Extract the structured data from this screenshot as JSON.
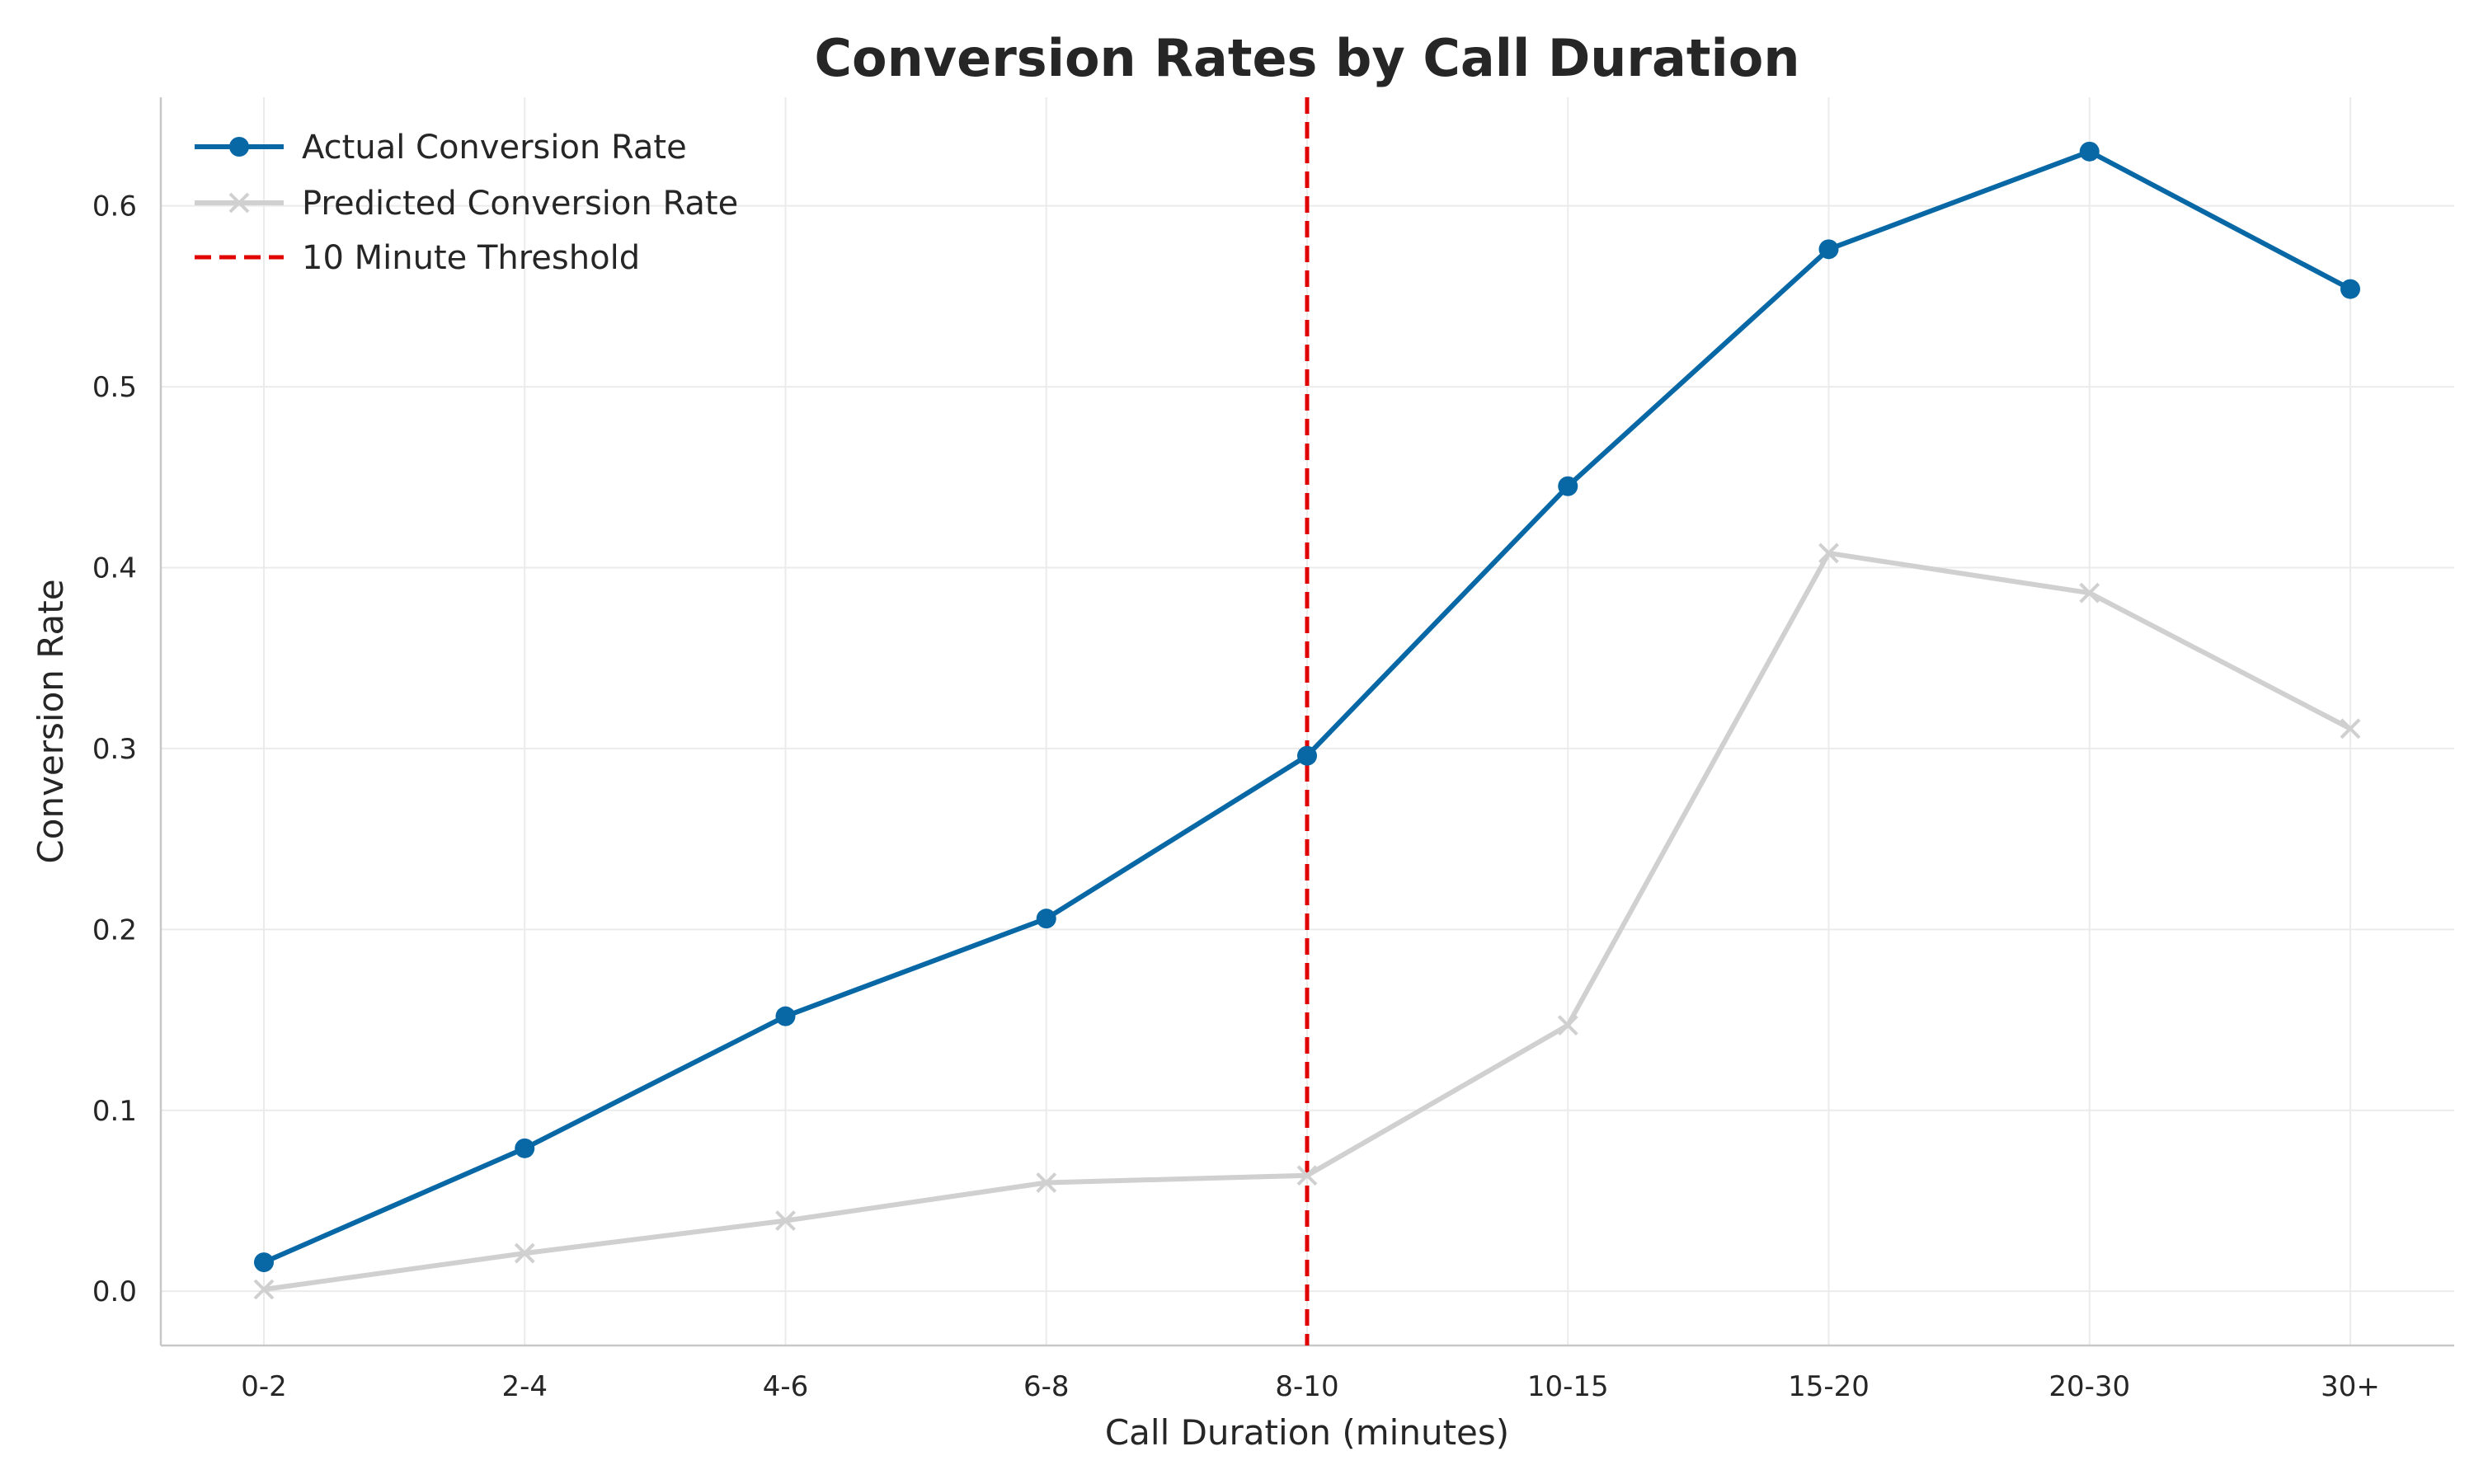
{
  "chart_data": {
    "type": "line",
    "title": "Conversion Rates by Call Duration",
    "xlabel": "Call Duration (minutes)",
    "ylabel": "Conversion Rate",
    "categories": [
      "0-2",
      "2-4",
      "4-6",
      "6-8",
      "8-10",
      "10-15",
      "15-20",
      "20-30",
      "30+"
    ],
    "ylim": [
      -0.03,
      0.66
    ],
    "yticks": [
      "0.0",
      "0.1",
      "0.2",
      "0.3",
      "0.4",
      "0.5",
      "0.6"
    ],
    "grid": true,
    "legend_position": "top-left",
    "series": [
      {
        "name": "Actual Conversion Rate",
        "values": [
          0.016,
          0.079,
          0.152,
          0.206,
          0.296,
          0.445,
          0.576,
          0.63,
          0.554
        ],
        "color": "#0868a6",
        "marker": "circle"
      },
      {
        "name": "Predicted Conversion Rate",
        "values": [
          0.001,
          0.021,
          0.039,
          0.06,
          0.064,
          0.147,
          0.408,
          0.386,
          0.311
        ],
        "color": "#d0d0d0",
        "marker": "x"
      }
    ],
    "threshold": {
      "name": "10 Minute Threshold",
      "category_index": 4,
      "color": "#e00000",
      "style": "dashed"
    }
  }
}
